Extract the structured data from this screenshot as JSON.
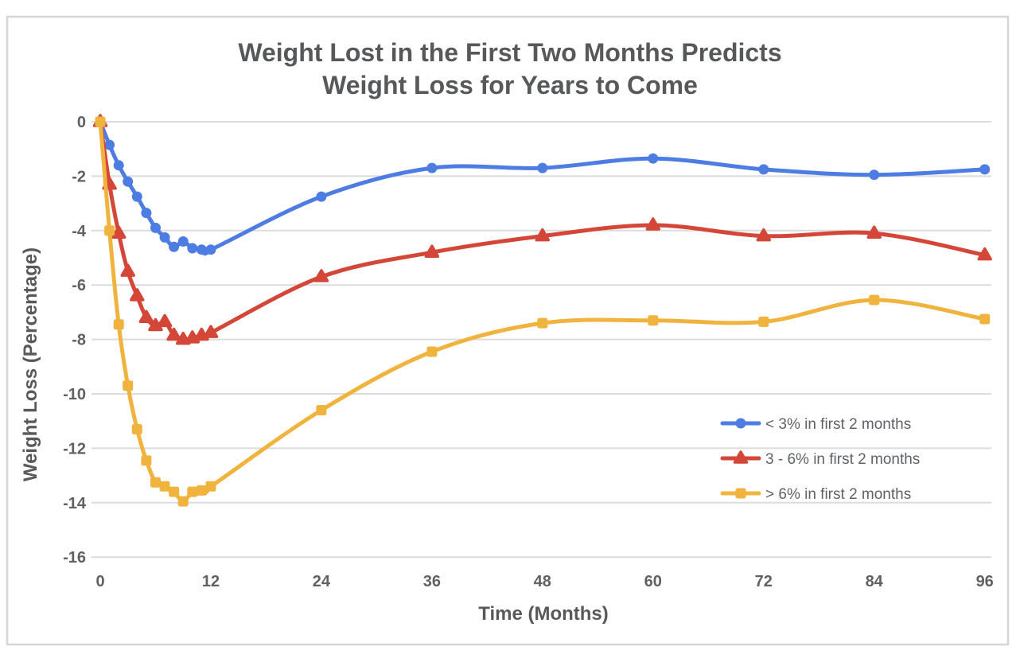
{
  "chart_data": {
    "type": "line",
    "title": "Weight Lost in the First Two Months Predicts Weight Loss for Years to Come",
    "title_lines": [
      "Weight Lost in the First Two Months Predicts",
      "Weight Loss for Years to Come"
    ],
    "xlabel": "Time (Months)",
    "ylabel": "Weight Loss (Percentage)",
    "x_ticks": [
      0,
      12,
      24,
      36,
      48,
      60,
      72,
      84,
      96
    ],
    "y_ticks": [
      0,
      -2,
      -4,
      -6,
      -8,
      -10,
      -12,
      -14,
      -16
    ],
    "xlim": [
      0,
      96
    ],
    "ylim": [
      -16,
      0
    ],
    "grid": "horizontal-only",
    "smooth": true,
    "legend_position": "inside-right",
    "x": [
      0,
      1,
      2,
      3,
      4,
      5,
      6,
      7,
      8,
      9,
      10,
      11,
      12,
      24,
      36,
      48,
      60,
      72,
      84,
      96
    ],
    "series": [
      {
        "id": "under-3pct",
        "name": "< 3% in first 2 months",
        "color": "#4D7CE3",
        "marker": "circle",
        "values": [
          0,
          -0.85,
          -1.6,
          -2.2,
          -2.75,
          -3.35,
          -3.9,
          -4.25,
          -4.6,
          -4.4,
          -4.65,
          -4.7,
          -4.7,
          -2.75,
          -1.7,
          -1.7,
          -1.35,
          -1.75,
          -1.95,
          -1.75
        ]
      },
      {
        "id": "3-to-6pct",
        "name": "3 - 6% in first 2 months",
        "color": "#D44638",
        "marker": "triangle",
        "values": [
          0,
          -2.3,
          -4.1,
          -5.5,
          -6.4,
          -7.2,
          -7.5,
          -7.35,
          -7.85,
          -8.0,
          -7.95,
          -7.85,
          -7.75,
          -5.7,
          -4.8,
          -4.2,
          -3.8,
          -4.2,
          -4.1,
          -4.9
        ]
      },
      {
        "id": "over-6pct",
        "name": "> 6% in first 2 months",
        "color": "#F0B43E",
        "marker": "square",
        "values": [
          0,
          -4.0,
          -7.45,
          -9.7,
          -11.3,
          -12.45,
          -13.25,
          -13.4,
          -13.6,
          -13.95,
          -13.6,
          -13.55,
          -13.4,
          -10.6,
          -8.45,
          -7.4,
          -7.3,
          -7.35,
          -6.55,
          -7.25
        ]
      }
    ],
    "colors": {
      "grid": "#dcdcdc",
      "frame": "#d6d6d6",
      "tick_text": "#616161",
      "title_text": "#56585a",
      "legend_text": "#5f6368"
    }
  }
}
